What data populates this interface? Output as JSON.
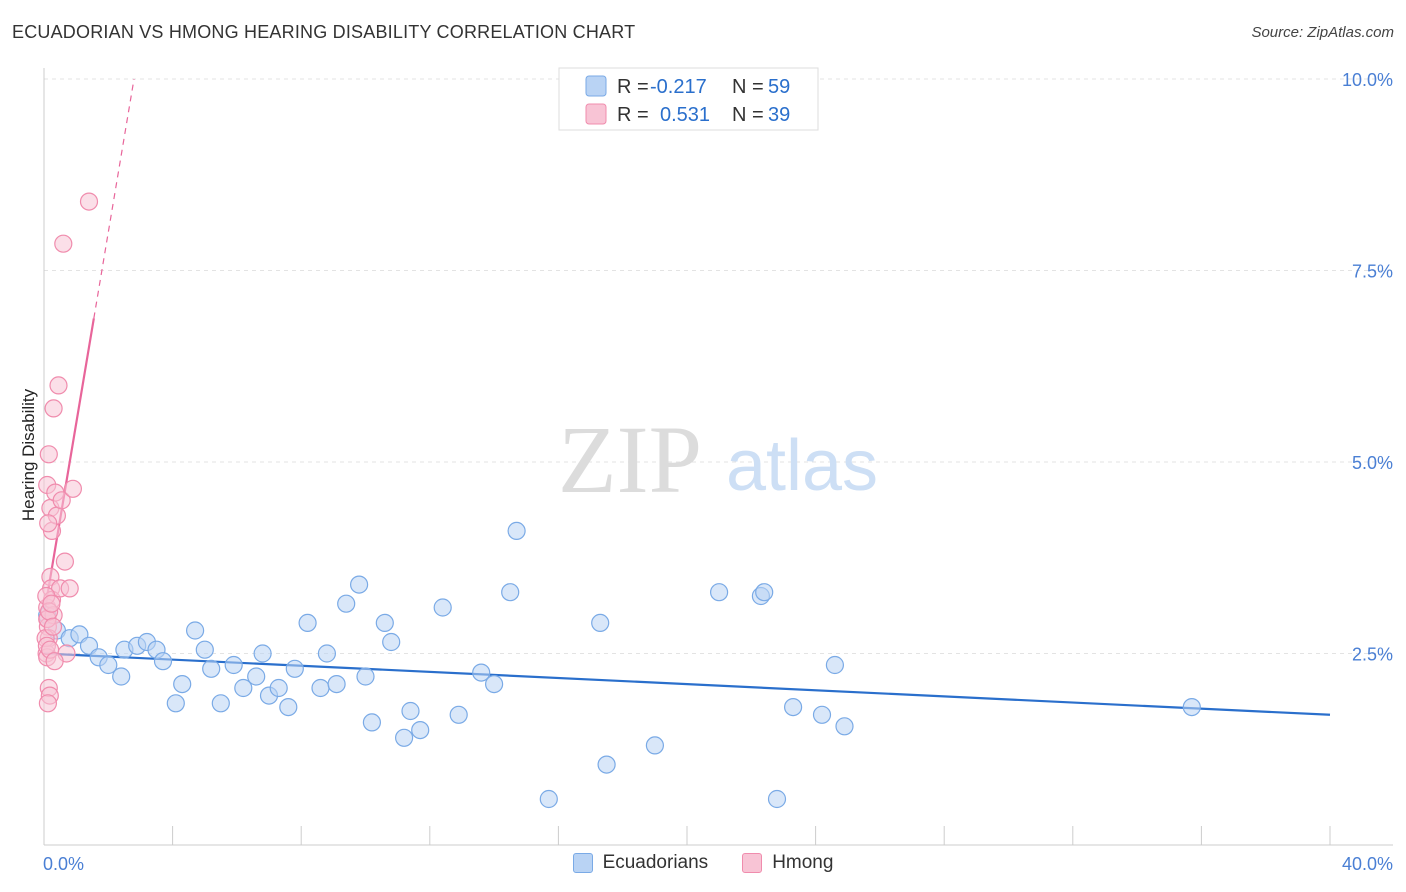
{
  "title": "ECUADORIAN VS HMONG HEARING DISABILITY CORRELATION CHART",
  "source": "Source: ZipAtlas.com",
  "watermark": {
    "zip": "ZIP",
    "atlas": "atlas"
  },
  "chart_data": {
    "type": "scatter",
    "title": "ECUADORIAN VS HMONG HEARING DISABILITY CORRELATION CHART",
    "ylabel": "Hearing Disability",
    "xlabel": "",
    "xlim": [
      0,
      40
    ],
    "ylim": [
      0,
      10.5
    ],
    "x_tick_labels": {
      "min": "0.0%",
      "max": "40.0%"
    },
    "y_ticks": [
      {
        "value": 2.5,
        "label": "2.5%"
      },
      {
        "value": 5.0,
        "label": "5.0%"
      },
      {
        "value": 7.5,
        "label": "7.5%"
      },
      {
        "value": 10.0,
        "label": "10.0%"
      }
    ],
    "legend": [
      {
        "r_label": "R =",
        "r_value": "-0.217",
        "n_label": "N =",
        "n_value": "59"
      },
      {
        "r_label": "R =",
        "r_value": "0.531",
        "n_label": "N =",
        "n_value": "39"
      }
    ],
    "series": [
      {
        "name": "Ecuadorians",
        "color": "#7aaae6",
        "fill": "#b9d3f4",
        "line_color": "#2a6fcc",
        "trend": {
          "x": [
            0,
            40
          ],
          "y": [
            2.5,
            1.7
          ]
        },
        "points": [
          [
            0.1,
            3.0
          ],
          [
            0.4,
            2.8
          ],
          [
            0.8,
            2.7
          ],
          [
            1.1,
            2.75
          ],
          [
            1.4,
            2.6
          ],
          [
            1.7,
            2.45
          ],
          [
            2.0,
            2.35
          ],
          [
            2.4,
            2.2
          ],
          [
            2.5,
            2.55
          ],
          [
            2.9,
            2.6
          ],
          [
            3.2,
            2.65
          ],
          [
            3.5,
            2.55
          ],
          [
            3.7,
            2.4
          ],
          [
            4.1,
            1.85
          ],
          [
            4.3,
            2.1
          ],
          [
            4.7,
            2.8
          ],
          [
            5.0,
            2.55
          ],
          [
            5.2,
            2.3
          ],
          [
            5.5,
            1.85
          ],
          [
            5.9,
            2.35
          ],
          [
            6.2,
            2.05
          ],
          [
            6.6,
            2.2
          ],
          [
            6.8,
            2.5
          ],
          [
            7.0,
            1.95
          ],
          [
            7.3,
            2.05
          ],
          [
            7.6,
            1.8
          ],
          [
            7.8,
            2.3
          ],
          [
            8.2,
            2.9
          ],
          [
            8.6,
            2.05
          ],
          [
            8.8,
            2.5
          ],
          [
            9.1,
            2.1
          ],
          [
            9.4,
            3.15
          ],
          [
            9.8,
            3.4
          ],
          [
            10.0,
            2.2
          ],
          [
            10.2,
            1.6
          ],
          [
            10.6,
            2.9
          ],
          [
            10.8,
            2.65
          ],
          [
            11.2,
            1.4
          ],
          [
            11.4,
            1.75
          ],
          [
            11.7,
            1.5
          ],
          [
            12.4,
            3.1
          ],
          [
            12.9,
            1.7
          ],
          [
            13.6,
            2.25
          ],
          [
            14.0,
            2.1
          ],
          [
            14.5,
            3.3
          ],
          [
            14.7,
            4.1
          ],
          [
            15.7,
            0.6
          ],
          [
            17.3,
            2.9
          ],
          [
            17.5,
            1.05
          ],
          [
            19.0,
            1.3
          ],
          [
            21.0,
            3.3
          ],
          [
            22.3,
            3.25
          ],
          [
            22.4,
            3.3
          ],
          [
            22.8,
            0.6
          ],
          [
            23.3,
            1.8
          ],
          [
            24.2,
            1.7
          ],
          [
            24.6,
            2.35
          ],
          [
            24.9,
            1.55
          ],
          [
            35.7,
            1.8
          ]
        ]
      },
      {
        "name": "Hmong",
        "color": "#f08cad",
        "fill": "#f8c4d5",
        "line_color": "#e8659a",
        "trend": {
          "x": [
            0,
            2.8
          ],
          "y": [
            3.0,
            10.0
          ],
          "solid_until_x": 1.55
        },
        "points": [
          [
            0.1,
            3.1
          ],
          [
            0.1,
            2.95
          ],
          [
            0.12,
            2.85
          ],
          [
            0.15,
            2.7
          ],
          [
            0.08,
            2.5
          ],
          [
            0.1,
            2.45
          ],
          [
            0.15,
            2.05
          ],
          [
            0.18,
            1.95
          ],
          [
            0.12,
            1.85
          ],
          [
            0.2,
            3.5
          ],
          [
            0.22,
            3.35
          ],
          [
            0.25,
            3.2
          ],
          [
            0.3,
            3.0
          ],
          [
            0.1,
            4.7
          ],
          [
            0.15,
            5.1
          ],
          [
            0.2,
            4.4
          ],
          [
            0.25,
            4.1
          ],
          [
            0.3,
            5.7
          ],
          [
            0.35,
            4.6
          ],
          [
            0.4,
            4.3
          ],
          [
            0.45,
            6.0
          ],
          [
            0.5,
            3.35
          ],
          [
            0.55,
            4.5
          ],
          [
            0.6,
            7.85
          ],
          [
            0.65,
            3.7
          ],
          [
            0.7,
            2.5
          ],
          [
            0.8,
            3.35
          ],
          [
            0.9,
            4.65
          ],
          [
            1.4,
            8.4
          ],
          [
            0.05,
            2.7
          ],
          [
            0.07,
            3.25
          ],
          [
            0.09,
            2.6
          ],
          [
            0.11,
            2.95
          ],
          [
            0.13,
            4.2
          ],
          [
            0.16,
            3.05
          ],
          [
            0.19,
            2.55
          ],
          [
            0.23,
            3.15
          ],
          [
            0.28,
            2.85
          ],
          [
            0.33,
            2.4
          ]
        ]
      }
    ]
  }
}
